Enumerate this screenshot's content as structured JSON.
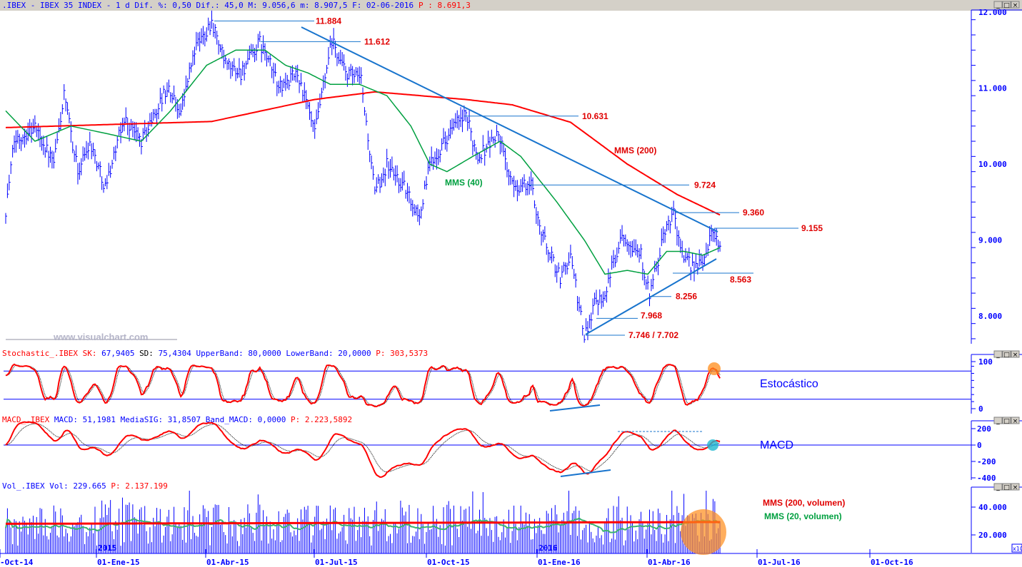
{
  "header": {
    "symbol": ".IBEX - IBEX 35 INDEX -  1 d Dif. %: 0,50 Dif.: 45,0 M: 9.056,6 m: 8.907,5 F: 02-06-2016",
    "last": "P : 8.691,3"
  },
  "watermark": "www.visualchart.com",
  "window_buttons": {
    "minimize": "_",
    "maximize": "□",
    "close": "×"
  },
  "panes": {
    "stochastic": {
      "name": "Stochastic_.IBEX SK:",
      "sk": "67,9405",
      "sd_label": "SD:",
      "sd": "75,4304",
      "bands": "UpperBand: 80,0000 LowerBand: 20,0000",
      "p": "P: 303,5373",
      "title": "Estocástico"
    },
    "macd": {
      "name": "MACD_.IBEX",
      "values": "MACD: 51,1981 MediaSIG: 31,8507 Band_MACD: 0,0000",
      "p": "P: 2.223,5892",
      "title": "MACD"
    },
    "volume": {
      "name": "Vol_.IBEX",
      "values": "Vol: 229.665",
      "p": "P: 2.137.199",
      "ma200_label": "MMS (200, volumen)",
      "ma20_label": "MMS (20, volumen)",
      "multiplier": "x10"
    }
  },
  "colors": {
    "price": "#0000ff",
    "ma200": "#ff0000",
    "ma40": "#00a040",
    "text": "#0000ff",
    "annot": "#e00000",
    "trend": "#1874cd",
    "highlight": "#ff8c1a"
  },
  "chart_data": {
    "type": "ohlc",
    "title": "IBEX 35 INDEX daily",
    "x_ticks": [
      "-Oct-14",
      "01-Ene-15",
      "01-Abr-15",
      "01-Jul-15",
      "01-Oct-15",
      "01-Ene-16",
      "01-Abr-16",
      "01-Jul-16",
      "01-Oct-16"
    ],
    "year_labels": [
      "2015",
      "2016"
    ],
    "y_ticks": [
      "12.000",
      "11.000",
      "10.000",
      "9.000",
      "8.000"
    ],
    "ylim": [
      7600,
      12000
    ],
    "price_path": [
      [
        0,
        9400
      ],
      [
        5,
        10300
      ],
      [
        17,
        10500
      ],
      [
        28,
        10000
      ],
      [
        34,
        10900
      ],
      [
        42,
        9900
      ],
      [
        49,
        10300
      ],
      [
        58,
        9700
      ],
      [
        69,
        10600
      ],
      [
        79,
        10300
      ],
      [
        94,
        11000
      ],
      [
        102,
        10700
      ],
      [
        110,
        11500
      ],
      [
        120,
        11884
      ],
      [
        128,
        11300
      ],
      [
        137,
        11200
      ],
      [
        148,
        11600
      ],
      [
        160,
        11000
      ],
      [
        170,
        11200
      ],
      [
        180,
        10400
      ],
      [
        190,
        11612
      ],
      [
        198,
        11200
      ],
      [
        207,
        11100
      ],
      [
        215,
        9600
      ],
      [
        222,
        10000
      ],
      [
        232,
        9700
      ],
      [
        241,
        9300
      ],
      [
        247,
        10000
      ],
      [
        261,
        10500
      ],
      [
        268,
        10631
      ],
      [
        275,
        10100
      ],
      [
        287,
        10400
      ],
      [
        295,
        9700
      ],
      [
        306,
        9724
      ],
      [
        312,
        9100
      ],
      [
        323,
        8500
      ],
      [
        329,
        8800
      ],
      [
        337,
        7702
      ],
      [
        343,
        8200
      ],
      [
        349,
        8300
      ],
      [
        359,
        9100
      ],
      [
        370,
        8800
      ],
      [
        375,
        8256
      ],
      [
        385,
        9200
      ],
      [
        389,
        9360
      ],
      [
        395,
        8700
      ],
      [
        405,
        8650
      ],
      [
        412,
        9155
      ],
      [
        416,
        8900
      ]
    ],
    "ma200_path": [
      [
        0,
        10480
      ],
      [
        120,
        10560
      ],
      [
        180,
        10850
      ],
      [
        215,
        10950
      ],
      [
        268,
        10850
      ],
      [
        295,
        10780
      ],
      [
        329,
        10550
      ],
      [
        362,
        10000
      ],
      [
        391,
        9600
      ],
      [
        416,
        9330
      ]
    ],
    "ma40_path": [
      [
        0,
        10700
      ],
      [
        17,
        10300
      ],
      [
        38,
        10500
      ],
      [
        59,
        10400
      ],
      [
        79,
        10300
      ],
      [
        96,
        10700
      ],
      [
        117,
        11300
      ],
      [
        134,
        11500
      ],
      [
        151,
        11500
      ],
      [
        163,
        11300
      ],
      [
        176,
        11200
      ],
      [
        189,
        11050
      ],
      [
        206,
        11050
      ],
      [
        222,
        10900
      ],
      [
        236,
        10500
      ],
      [
        247,
        10000
      ],
      [
        257,
        9900
      ],
      [
        272,
        10100
      ],
      [
        288,
        10300
      ],
      [
        300,
        10100
      ],
      [
        321,
        9500
      ],
      [
        337,
        9000
      ],
      [
        349,
        8550
      ],
      [
        362,
        8600
      ],
      [
        374,
        8550
      ],
      [
        385,
        8850
      ],
      [
        395,
        8850
      ],
      [
        406,
        8800
      ],
      [
        416,
        8900
      ]
    ],
    "levels": [
      {
        "label": "11.884",
        "value": 11884
      },
      {
        "label": "11.612",
        "value": 11612
      },
      {
        "label": "10.631",
        "value": 10631
      },
      {
        "label": "9.724",
        "value": 9724
      },
      {
        "label": "9.360",
        "value": 9360
      },
      {
        "label": "9.155",
        "value": 9155
      },
      {
        "label": "8.563",
        "value": 8563
      },
      {
        "label": "8.256",
        "value": 8256
      },
      {
        "label": "7.968",
        "value": 7968
      },
      {
        "label": "7.746 / 7.702",
        "value": 7746
      }
    ],
    "series_labels": {
      "ma200": "MMS (200)",
      "ma40": "MMS (40)"
    },
    "stoch": {
      "y_ticks": [
        "100",
        "0"
      ],
      "upper": 80,
      "lower": 20,
      "k": 67.9405,
      "d": 75.4304
    },
    "macd": {
      "y_ticks": [
        "200",
        "0",
        "-200",
        "-400"
      ],
      "macd": 51.1981,
      "signal": 31.8507
    },
    "volume": {
      "y_ticks": [
        "40.000",
        "20.000"
      ],
      "last": 229665,
      "ma200_level": 28000,
      "ma20_level": 25000
    }
  }
}
